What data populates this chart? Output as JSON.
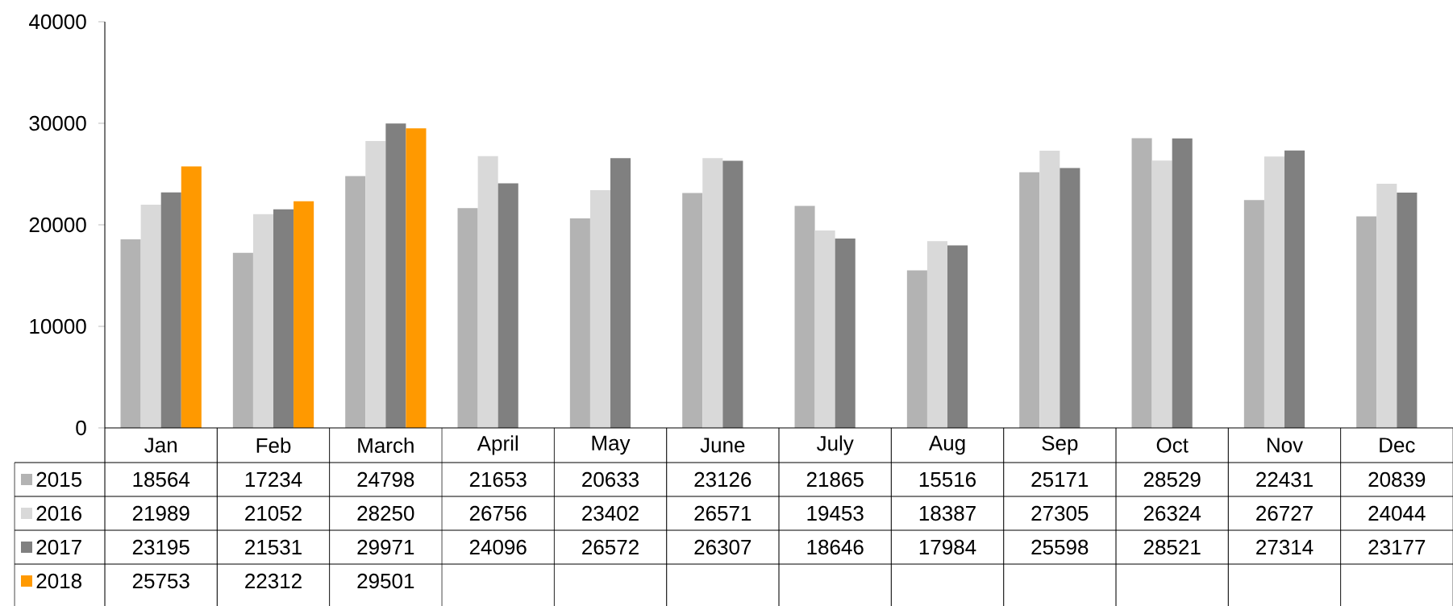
{
  "chart_data": {
    "type": "bar",
    "categories": [
      "Jan",
      "Feb",
      "March",
      "April",
      "May",
      "June",
      "July",
      "Aug",
      "Sep",
      "Oct",
      "Nov",
      "Dec"
    ],
    "series": [
      {
        "name": "2015",
        "color": "#b3b3b3",
        "values": [
          18564,
          17234,
          24798,
          21653,
          20633,
          23126,
          21865,
          15516,
          25171,
          28529,
          22431,
          20839
        ]
      },
      {
        "name": "2016",
        "color": "#d9d9d9",
        "values": [
          21989,
          21052,
          28250,
          26756,
          23402,
          26571,
          19453,
          18387,
          27305,
          26324,
          26727,
          24044
        ]
      },
      {
        "name": "2017",
        "color": "#808080",
        "values": [
          23195,
          21531,
          29971,
          24096,
          26572,
          26307,
          18646,
          17984,
          25598,
          28521,
          27314,
          23177
        ]
      },
      {
        "name": "2018",
        "color": "#ff9900",
        "values": [
          25753,
          22312,
          29501,
          null,
          null,
          null,
          null,
          null,
          null,
          null,
          null,
          null
        ]
      }
    ],
    "ylim": [
      0,
      40000
    ],
    "yticks": [
      0,
      10000,
      20000,
      30000,
      40000
    ],
    "data_labels": true,
    "legend": "bottom"
  }
}
